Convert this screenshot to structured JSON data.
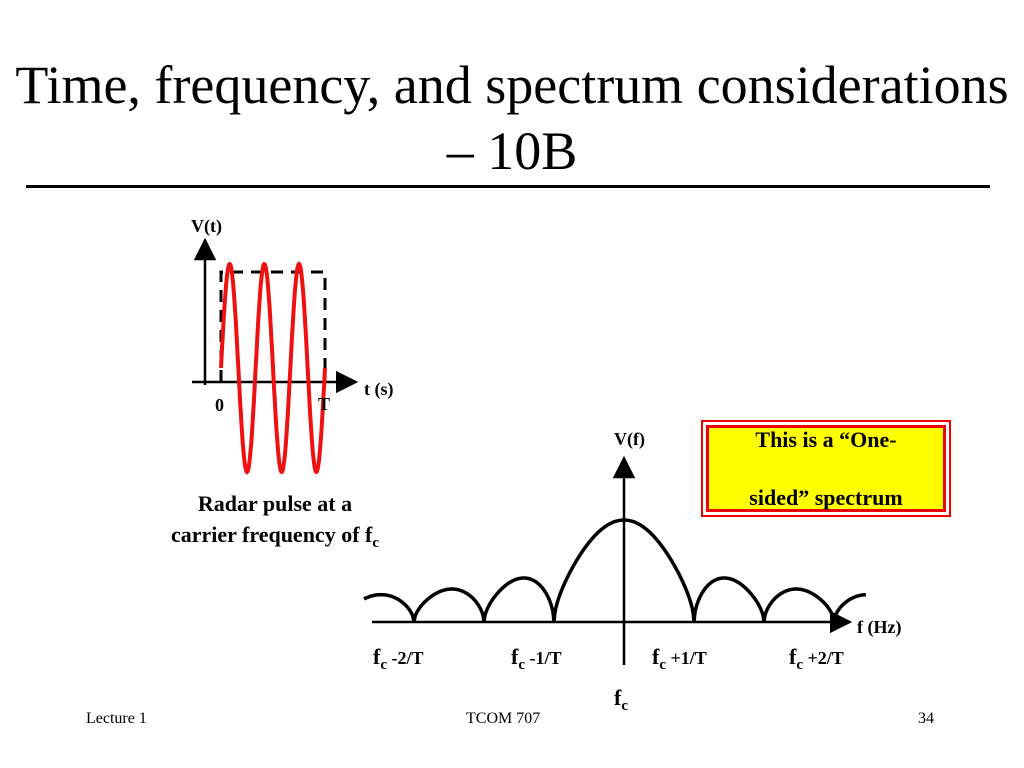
{
  "slide": {
    "title": "Time, frequency, and spectrum considerations – 10B",
    "footer": {
      "left": "Lecture 1",
      "center": "TCOM 707",
      "right": "34"
    }
  },
  "time_plot": {
    "y_label": "V(t)",
    "x_label": "t (s)",
    "tick_start": "0",
    "tick_end": "T",
    "caption_line1": "Radar pulse at a",
    "caption_line2": "carrier frequency of f",
    "caption_sub": "c",
    "wave_color": "#ee1111",
    "envelope_style": "dashed"
  },
  "spectrum_plot": {
    "y_label": "V(f)",
    "x_label": "f (Hz)",
    "ticks": [
      {
        "base": "f",
        "sub": "c",
        "suffix": " -2/T"
      },
      {
        "base": "f",
        "sub": "c",
        "suffix": " -1/T"
      },
      {
        "base": "f",
        "sub": "c",
        "suffix": " +1/T"
      },
      {
        "base": "f",
        "sub": "c",
        "suffix": " +2/T"
      }
    ],
    "center": {
      "base": "f",
      "sub": "c"
    }
  },
  "callout": {
    "line1": "This is a “One-",
    "line2": "sided” spectrum",
    "fill": "#ffff00",
    "border": "#ee0000"
  }
}
